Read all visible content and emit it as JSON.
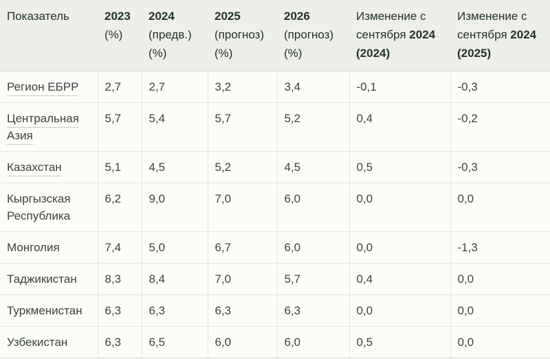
{
  "colors": {
    "page_bg": "#fdfdfb",
    "header_bg": "#edefe8",
    "body_bg": "#fcfcf9",
    "border": "#e2e5de",
    "border_strong": "#d8dbd3",
    "header_text": "#24312b",
    "body_text": "#39433e",
    "underline": "#c8cdc5"
  },
  "table": {
    "header": [
      {
        "key": "indicator",
        "parts": [
          {
            "text": "Показатель",
            "bold": false
          }
        ]
      },
      {
        "key": "2023",
        "parts": [
          {
            "text": "2023",
            "bold": true
          },
          {
            "text": "(%)",
            "bold": false
          }
        ]
      },
      {
        "key": "2024-estimate",
        "parts": [
          {
            "text": "2024",
            "bold": true
          },
          {
            "text": "(предв.)",
            "bold": false
          },
          {
            "text": "(%)",
            "bold": false
          }
        ]
      },
      {
        "key": "2025-forecast",
        "parts": [
          {
            "text": "2025",
            "bold": true
          },
          {
            "text": "(прогноз)",
            "bold": false
          },
          {
            "text": "(%)",
            "bold": false
          }
        ]
      },
      {
        "key": "2026-forecast",
        "parts": [
          {
            "text": "2026",
            "bold": true
          },
          {
            "text": "(прогноз)",
            "bold": false
          },
          {
            "text": "(%)",
            "bold": false
          }
        ]
      },
      {
        "key": "change-since-sept-2024-for-2024",
        "parts": [
          {
            "text": "Изменение с сентября",
            "bold": false
          },
          {
            "text": "2024",
            "bold": true
          },
          {
            "text": "(2024)",
            "bold": true
          }
        ]
      },
      {
        "key": "change-since-sept-2024-for-2025",
        "parts": [
          {
            "text": "Изменение с сентября",
            "bold": false
          },
          {
            "text": "2024",
            "bold": true
          },
          {
            "text": "(2025)",
            "bold": true
          }
        ]
      }
    ],
    "rows": [
      {
        "key": "region-ebrd",
        "name": "Регион ЕБРР",
        "underlined": true,
        "values": [
          "2,7",
          "2,7",
          "3,2",
          "3,4",
          "-0,1",
          "-0,3"
        ]
      },
      {
        "key": "central-asia",
        "name": "Центральная Азия",
        "underlined": true,
        "values": [
          "5,7",
          "5,4",
          "5,7",
          "5,2",
          "0,4",
          "-0,2"
        ]
      },
      {
        "key": "kazakhstan",
        "name": "Казахстан",
        "underlined": true,
        "values": [
          "5,1",
          "4,5",
          "5,2",
          "4,5",
          "0,5",
          "-0,3"
        ]
      },
      {
        "key": "kyrgyz-republic",
        "name": "Кыргызская Республика",
        "underlined": false,
        "values": [
          "6,2",
          "9,0",
          "7,0",
          "6,0",
          "0,0",
          "0,0"
        ]
      },
      {
        "key": "mongolia",
        "name": "Монголия",
        "underlined": false,
        "values": [
          "7,4",
          "5,0",
          "6,7",
          "6,0",
          "0,0",
          "-1,3"
        ]
      },
      {
        "key": "tajikistan",
        "name": "Таджикистан",
        "underlined": false,
        "values": [
          "8,3",
          "8,4",
          "7,0",
          "5,7",
          "0,4",
          "0,0"
        ]
      },
      {
        "key": "turkmenistan",
        "name": "Туркменистан",
        "underlined": false,
        "values": [
          "6,3",
          "6,3",
          "6,3",
          "6,3",
          "0,0",
          "0,0"
        ]
      },
      {
        "key": "uzbekistan",
        "name": "Узбекистан",
        "underlined": false,
        "values": [
          "6,3",
          "6,5",
          "6,0",
          "6,0",
          "0,5",
          "0,0"
        ]
      }
    ]
  },
  "chart_data": {
    "type": "table",
    "title": "",
    "columns": [
      "Показатель",
      "2023 (%)",
      "2024 (предв.) (%)",
      "2025 (прогноз) (%)",
      "2026 (прогноз) (%)",
      "Изменение с сентября 2024 (2024)",
      "Изменение с сентября 2024 (2025)"
    ],
    "rows": [
      [
        "Регион ЕБРР",
        2.7,
        2.7,
        3.2,
        3.4,
        -0.1,
        -0.3
      ],
      [
        "Центральная Азия",
        5.7,
        5.4,
        5.7,
        5.2,
        0.4,
        -0.2
      ],
      [
        "Казахстан",
        5.1,
        4.5,
        5.2,
        4.5,
        0.5,
        -0.3
      ],
      [
        "Кыргызская Республика",
        6.2,
        9.0,
        7.0,
        6.0,
        0.0,
        0.0
      ],
      [
        "Монголия",
        7.4,
        5.0,
        6.7,
        6.0,
        0.0,
        -1.3
      ],
      [
        "Таджикистан",
        8.3,
        8.4,
        7.0,
        5.7,
        0.4,
        0.0
      ],
      [
        "Туркменистан",
        6.3,
        6.3,
        6.3,
        6.3,
        0.0,
        0.0
      ],
      [
        "Узбекистан",
        6.3,
        6.5,
        6.0,
        6.0,
        0.5,
        0.0
      ]
    ],
    "layout": {
      "decimal_separator": ",",
      "header_background": "#edefe8",
      "grid": true
    }
  }
}
